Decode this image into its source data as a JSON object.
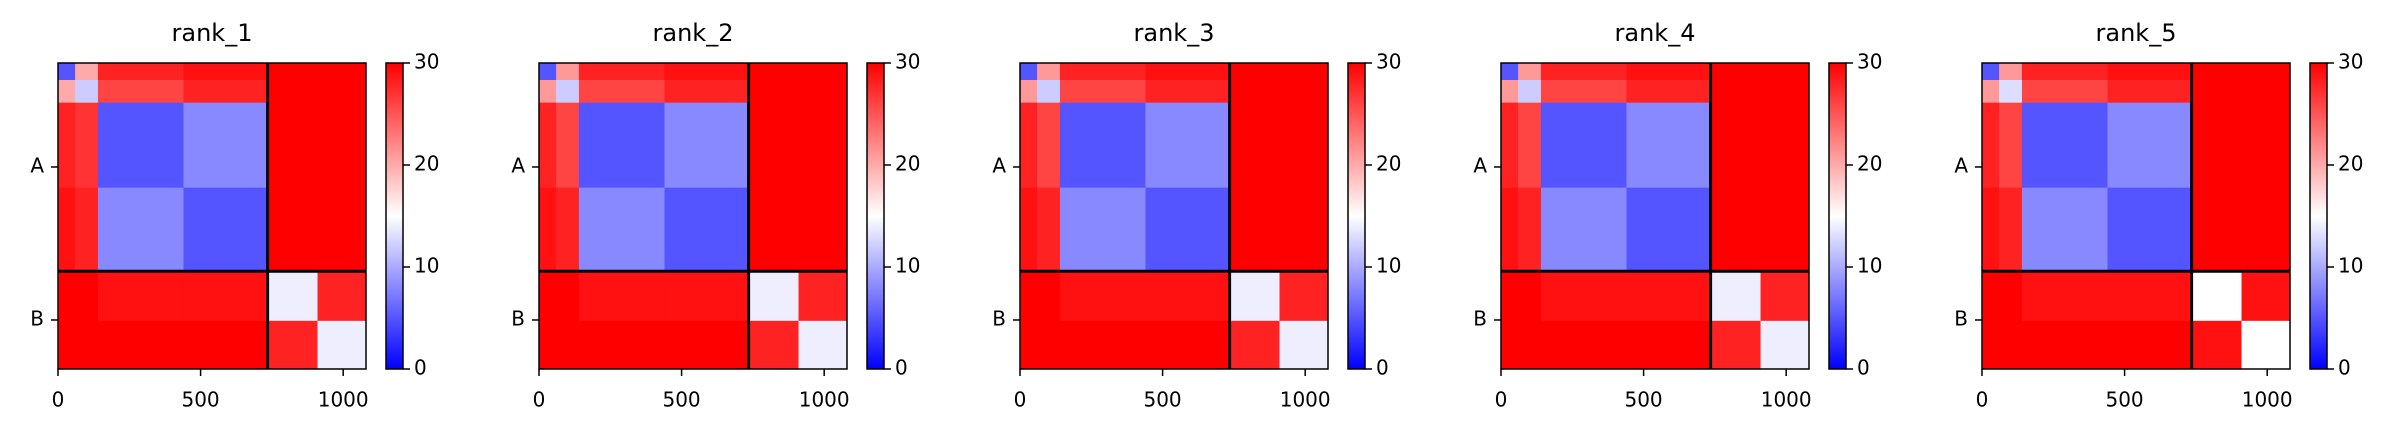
{
  "chart_data": [
    {
      "type": "heatmap",
      "title": "rank_1",
      "colorscale": [
        "#0000ff",
        "#ffffff",
        "#ff0000"
      ],
      "xlim": [
        0,
        1080
      ],
      "xticks": [
        0,
        500,
        1000
      ],
      "ylim": [
        0,
        1080
      ],
      "y_inverted": true,
      "yticks": [
        {
          "value": 367,
          "label": "A"
        },
        {
          "value": 907,
          "label": "B"
        }
      ],
      "boundaries": [
        735
      ],
      "edges": [
        0,
        60,
        140,
        440,
        735,
        910,
        1080
      ],
      "z": [
        [
          5,
          20,
          28,
          29,
          30,
          30
        ],
        [
          20,
          12,
          26,
          28,
          30,
          30
        ],
        [
          28,
          27,
          5,
          8,
          30,
          30
        ],
        [
          29,
          28,
          8,
          5,
          30,
          30
        ],
        [
          30,
          30,
          29,
          29,
          14,
          28
        ],
        [
          30,
          30,
          30,
          30,
          28,
          14
        ]
      ],
      "clim": [
        0,
        30
      ],
      "cticks": [
        0,
        10,
        20,
        30
      ]
    },
    {
      "type": "heatmap",
      "title": "rank_2",
      "colorscale": [
        "#0000ff",
        "#ffffff",
        "#ff0000"
      ],
      "xlim": [
        0,
        1080
      ],
      "xticks": [
        0,
        500,
        1000
      ],
      "ylim": [
        0,
        1080
      ],
      "y_inverted": true,
      "yticks": [
        {
          "value": 367,
          "label": "A"
        },
        {
          "value": 907,
          "label": "B"
        }
      ],
      "boundaries": [
        735
      ],
      "edges": [
        0,
        60,
        140,
        440,
        735,
        910,
        1080
      ],
      "z": [
        [
          5,
          21,
          28,
          29,
          30,
          30
        ],
        [
          21,
          12,
          26,
          28,
          30,
          30
        ],
        [
          28,
          26,
          5,
          8,
          30,
          30
        ],
        [
          29,
          28,
          8,
          5,
          30,
          30
        ],
        [
          30,
          30,
          29,
          29,
          14,
          28
        ],
        [
          30,
          30,
          30,
          30,
          28,
          14
        ]
      ],
      "clim": [
        0,
        30
      ],
      "cticks": [
        0,
        10,
        20,
        30
      ]
    },
    {
      "type": "heatmap",
      "title": "rank_3",
      "colorscale": [
        "#0000ff",
        "#ffffff",
        "#ff0000"
      ],
      "xlim": [
        0,
        1080
      ],
      "xticks": [
        0,
        500,
        1000
      ],
      "ylim": [
        0,
        1080
      ],
      "y_inverted": true,
      "yticks": [
        {
          "value": 367,
          "label": "A"
        },
        {
          "value": 907,
          "label": "B"
        }
      ],
      "boundaries": [
        735
      ],
      "edges": [
        0,
        60,
        140,
        440,
        735,
        910,
        1080
      ],
      "z": [
        [
          5,
          21,
          28,
          29,
          30,
          30
        ],
        [
          21,
          12,
          26,
          28,
          30,
          30
        ],
        [
          28,
          26,
          5,
          8,
          30,
          30
        ],
        [
          29,
          28,
          8,
          5,
          30,
          30
        ],
        [
          30,
          30,
          29,
          29,
          14,
          28
        ],
        [
          30,
          30,
          30,
          30,
          28,
          14
        ]
      ],
      "clim": [
        0,
        30
      ],
      "cticks": [
        0,
        10,
        20,
        30
      ]
    },
    {
      "type": "heatmap",
      "title": "rank_4",
      "colorscale": [
        "#0000ff",
        "#ffffff",
        "#ff0000"
      ],
      "xlim": [
        0,
        1080
      ],
      "xticks": [
        0,
        500,
        1000
      ],
      "ylim": [
        0,
        1080
      ],
      "y_inverted": true,
      "yticks": [
        {
          "value": 367,
          "label": "A"
        },
        {
          "value": 907,
          "label": "B"
        }
      ],
      "boundaries": [
        735
      ],
      "edges": [
        0,
        60,
        140,
        440,
        735,
        910,
        1080
      ],
      "z": [
        [
          5,
          21,
          28,
          29,
          30,
          30
        ],
        [
          21,
          12,
          26,
          28,
          30,
          30
        ],
        [
          28,
          26,
          5,
          8,
          30,
          30
        ],
        [
          29,
          28,
          8,
          5,
          30,
          30
        ],
        [
          30,
          30,
          29,
          29,
          14,
          28
        ],
        [
          30,
          30,
          30,
          30,
          28,
          14
        ]
      ],
      "clim": [
        0,
        30
      ],
      "cticks": [
        0,
        10,
        20,
        30
      ]
    },
    {
      "type": "heatmap",
      "title": "rank_5",
      "colorscale": [
        "#0000ff",
        "#ffffff",
        "#ff0000"
      ],
      "xlim": [
        0,
        1080
      ],
      "xticks": [
        0,
        500,
        1000
      ],
      "ylim": [
        0,
        1080
      ],
      "y_inverted": true,
      "yticks": [
        {
          "value": 367,
          "label": "A"
        },
        {
          "value": 907,
          "label": "B"
        }
      ],
      "boundaries": [
        735
      ],
      "edges": [
        0,
        60,
        140,
        440,
        735,
        910,
        1080
      ],
      "z": [
        [
          5,
          21,
          28,
          29,
          30,
          30
        ],
        [
          21,
          13,
          26,
          28,
          30,
          30
        ],
        [
          28,
          26,
          5,
          8,
          30,
          30
        ],
        [
          29,
          28,
          8,
          5,
          30,
          30
        ],
        [
          30,
          30,
          29,
          29,
          15,
          29
        ],
        [
          30,
          30,
          30,
          30,
          29,
          15
        ]
      ],
      "clim": [
        0,
        30
      ],
      "cticks": [
        0,
        10,
        20,
        30
      ]
    }
  ]
}
